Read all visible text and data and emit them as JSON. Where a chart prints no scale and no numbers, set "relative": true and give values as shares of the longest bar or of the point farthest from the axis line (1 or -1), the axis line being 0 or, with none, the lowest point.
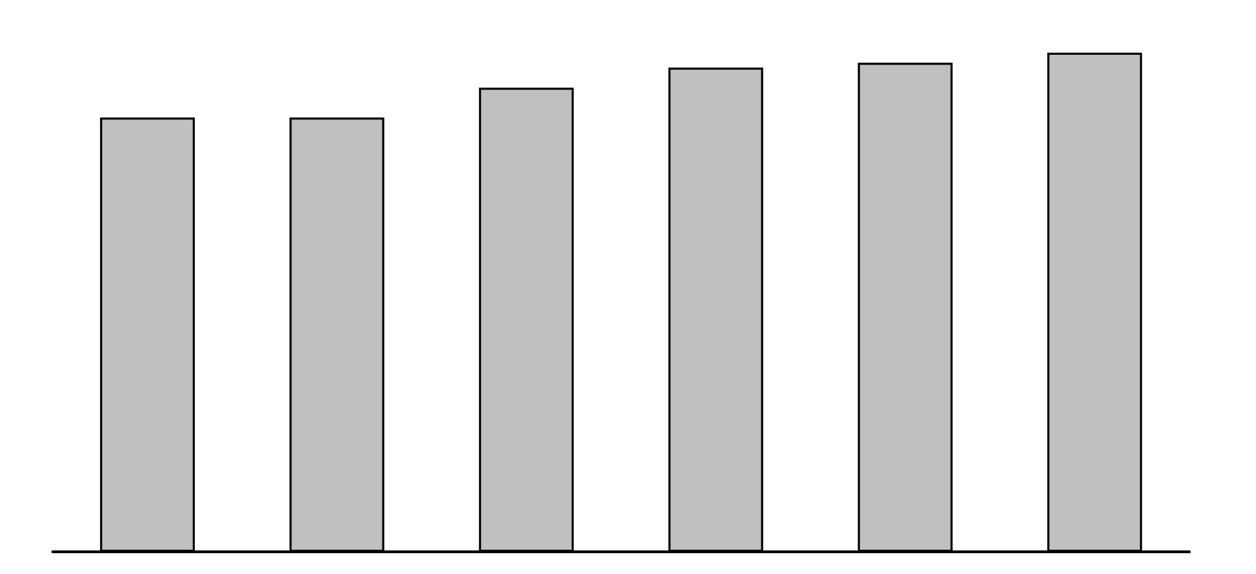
{
  "chart_data": {
    "type": "bar",
    "relative": true,
    "categories": [
      null,
      null,
      null,
      null,
      null,
      null
    ],
    "values": [
      0.87,
      0.87,
      0.93,
      0.97,
      0.98,
      1
    ],
    "color": "#c0c0c0"
  }
}
